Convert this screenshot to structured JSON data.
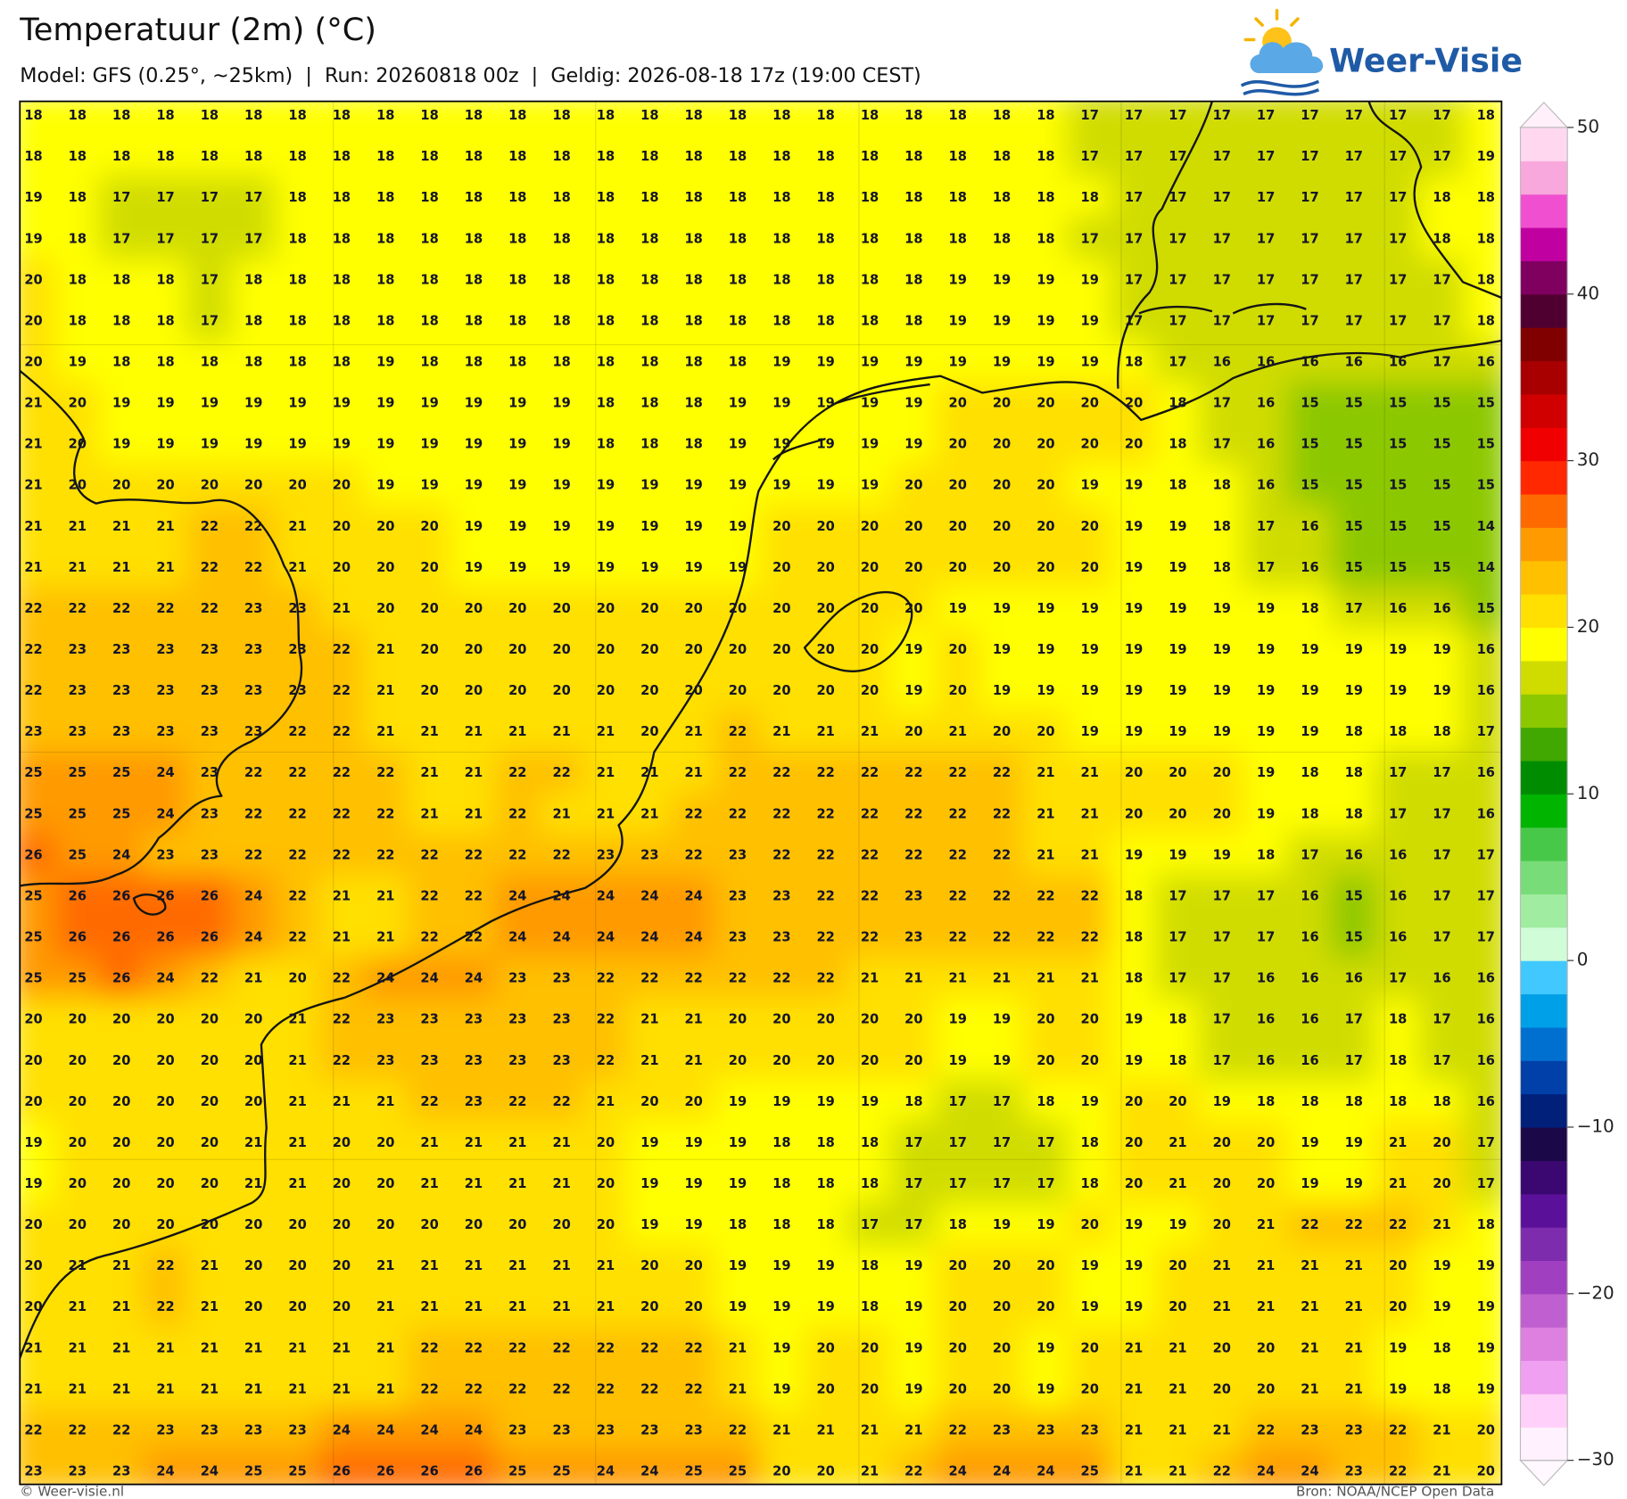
{
  "header": {
    "title": "Temperatuur (2m) (°C)",
    "subtitle": "Model: GFS (0.25°, ~25km)  |  Run: 20260818 00z  |  Geldig: 2026-08-18 17z (19:00 CEST)"
  },
  "logo": {
    "text": "Weer-Visie"
  },
  "map": {
    "values": [
      [
        18,
        18,
        18,
        18,
        18,
        18,
        18,
        18,
        18,
        18,
        18,
        18,
        18,
        18,
        18,
        18,
        18,
        18,
        18,
        18,
        18,
        18,
        18,
        18,
        17,
        17,
        17,
        17,
        17,
        17,
        17,
        17,
        17,
        18
      ],
      [
        18,
        18,
        18,
        18,
        18,
        18,
        18,
        18,
        18,
        18,
        18,
        18,
        18,
        18,
        18,
        18,
        18,
        18,
        18,
        18,
        18,
        18,
        18,
        18,
        17,
        17,
        17,
        17,
        17,
        17,
        17,
        17,
        17,
        19
      ],
      [
        19,
        18,
        17,
        17,
        17,
        17,
        18,
        18,
        18,
        18,
        18,
        18,
        18,
        18,
        18,
        18,
        18,
        18,
        18,
        18,
        18,
        18,
        18,
        18,
        18,
        17,
        17,
        17,
        17,
        17,
        17,
        17,
        18,
        18
      ],
      [
        19,
        18,
        17,
        17,
        17,
        17,
        18,
        18,
        18,
        18,
        18,
        18,
        18,
        18,
        18,
        18,
        18,
        18,
        18,
        18,
        18,
        18,
        18,
        18,
        17,
        17,
        17,
        17,
        17,
        17,
        17,
        17,
        18,
        18
      ],
      [
        20,
        18,
        18,
        18,
        17,
        18,
        18,
        18,
        18,
        18,
        18,
        18,
        18,
        18,
        18,
        18,
        18,
        18,
        18,
        18,
        18,
        19,
        19,
        19,
        19,
        17,
        17,
        17,
        17,
        17,
        17,
        17,
        17,
        18
      ],
      [
        20,
        18,
        18,
        18,
        17,
        18,
        18,
        18,
        18,
        18,
        18,
        18,
        18,
        18,
        18,
        18,
        18,
        18,
        18,
        18,
        18,
        19,
        19,
        19,
        19,
        17,
        17,
        17,
        17,
        17,
        17,
        17,
        17,
        18
      ],
      [
        20,
        19,
        18,
        18,
        18,
        18,
        18,
        18,
        19,
        18,
        18,
        18,
        18,
        18,
        18,
        18,
        18,
        19,
        19,
        19,
        19,
        19,
        19,
        19,
        19,
        18,
        17,
        16,
        16,
        16,
        16,
        16,
        17,
        16
      ],
      [
        21,
        20,
        19,
        19,
        19,
        19,
        19,
        19,
        19,
        19,
        19,
        19,
        19,
        18,
        18,
        18,
        19,
        19,
        19,
        19,
        19,
        20,
        20,
        20,
        20,
        20,
        18,
        17,
        16,
        15,
        15,
        15,
        15,
        15
      ],
      [
        21,
        20,
        19,
        19,
        19,
        19,
        19,
        19,
        19,
        19,
        19,
        19,
        19,
        18,
        18,
        18,
        19,
        19,
        19,
        19,
        19,
        20,
        20,
        20,
        20,
        20,
        18,
        17,
        16,
        15,
        15,
        15,
        15,
        15
      ],
      [
        21,
        20,
        20,
        20,
        20,
        20,
        20,
        20,
        19,
        19,
        19,
        19,
        19,
        19,
        19,
        19,
        19,
        19,
        19,
        19,
        20,
        20,
        20,
        20,
        19,
        19,
        18,
        18,
        16,
        15,
        15,
        15,
        15,
        15
      ],
      [
        21,
        21,
        21,
        21,
        22,
        22,
        21,
        20,
        20,
        20,
        19,
        19,
        19,
        19,
        19,
        19,
        19,
        20,
        20,
        20,
        20,
        20,
        20,
        20,
        20,
        19,
        19,
        18,
        17,
        16,
        15,
        15,
        15,
        14
      ],
      [
        21,
        21,
        21,
        21,
        22,
        22,
        21,
        20,
        20,
        20,
        19,
        19,
        19,
        19,
        19,
        19,
        19,
        20,
        20,
        20,
        20,
        20,
        20,
        20,
        20,
        19,
        19,
        18,
        17,
        16,
        15,
        15,
        15,
        14
      ],
      [
        22,
        22,
        22,
        22,
        22,
        23,
        23,
        21,
        20,
        20,
        20,
        20,
        20,
        20,
        20,
        20,
        20,
        20,
        20,
        20,
        20,
        19,
        19,
        19,
        19,
        19,
        19,
        19,
        19,
        18,
        17,
        16,
        16,
        15
      ],
      [
        22,
        23,
        23,
        23,
        23,
        23,
        23,
        22,
        21,
        20,
        20,
        20,
        20,
        20,
        20,
        20,
        20,
        20,
        20,
        20,
        19,
        20,
        19,
        19,
        19,
        19,
        19,
        19,
        19,
        19,
        19,
        19,
        19,
        16
      ],
      [
        22,
        23,
        23,
        23,
        23,
        23,
        23,
        22,
        21,
        20,
        20,
        20,
        20,
        20,
        20,
        20,
        20,
        20,
        20,
        20,
        19,
        20,
        19,
        19,
        19,
        19,
        19,
        19,
        19,
        19,
        19,
        19,
        19,
        16
      ],
      [
        23,
        23,
        23,
        23,
        23,
        23,
        22,
        22,
        21,
        21,
        21,
        21,
        21,
        21,
        20,
        21,
        22,
        21,
        21,
        21,
        20,
        21,
        20,
        20,
        19,
        19,
        19,
        19,
        19,
        19,
        18,
        18,
        18,
        17
      ],
      [
        25,
        25,
        25,
        24,
        23,
        22,
        22,
        22,
        22,
        21,
        21,
        22,
        22,
        21,
        21,
        21,
        22,
        22,
        22,
        22,
        22,
        22,
        22,
        21,
        21,
        20,
        20,
        20,
        19,
        18,
        18,
        17,
        17,
        16
      ],
      [
        25,
        25,
        25,
        24,
        23,
        22,
        22,
        22,
        22,
        21,
        21,
        22,
        21,
        21,
        21,
        22,
        22,
        22,
        22,
        22,
        22,
        22,
        22,
        21,
        21,
        20,
        20,
        20,
        19,
        18,
        18,
        17,
        17,
        16
      ],
      [
        26,
        25,
        24,
        23,
        23,
        22,
        22,
        22,
        22,
        22,
        22,
        22,
        22,
        23,
        23,
        22,
        23,
        22,
        22,
        22,
        22,
        22,
        22,
        21,
        21,
        19,
        19,
        19,
        18,
        17,
        16,
        16,
        17,
        17
      ],
      [
        25,
        26,
        26,
        26,
        26,
        24,
        22,
        21,
        21,
        22,
        22,
        24,
        24,
        24,
        24,
        24,
        23,
        23,
        22,
        22,
        23,
        22,
        22,
        22,
        22,
        18,
        17,
        17,
        17,
        16,
        15,
        16,
        17,
        17
      ],
      [
        25,
        26,
        26,
        26,
        26,
        24,
        22,
        21,
        21,
        22,
        22,
        24,
        24,
        24,
        24,
        24,
        23,
        23,
        22,
        22,
        23,
        22,
        22,
        22,
        22,
        18,
        17,
        17,
        17,
        16,
        15,
        16,
        17,
        17
      ],
      [
        25,
        25,
        26,
        24,
        22,
        21,
        20,
        22,
        24,
        24,
        24,
        23,
        23,
        22,
        22,
        22,
        22,
        22,
        22,
        21,
        21,
        21,
        21,
        21,
        21,
        18,
        17,
        17,
        16,
        16,
        16,
        17,
        16,
        16
      ],
      [
        20,
        20,
        20,
        20,
        20,
        20,
        21,
        22,
        23,
        23,
        23,
        23,
        23,
        22,
        21,
        21,
        20,
        20,
        20,
        20,
        20,
        19,
        19,
        20,
        20,
        19,
        18,
        17,
        16,
        16,
        17,
        18,
        17,
        16
      ],
      [
        20,
        20,
        20,
        20,
        20,
        20,
        21,
        22,
        23,
        23,
        23,
        23,
        23,
        22,
        21,
        21,
        20,
        20,
        20,
        20,
        20,
        19,
        19,
        20,
        20,
        19,
        18,
        17,
        16,
        16,
        17,
        18,
        17,
        16
      ],
      [
        20,
        20,
        20,
        20,
        20,
        20,
        21,
        21,
        21,
        22,
        23,
        22,
        22,
        21,
        20,
        20,
        19,
        19,
        19,
        19,
        18,
        17,
        17,
        18,
        19,
        20,
        20,
        19,
        18,
        18,
        18,
        18,
        18,
        16
      ],
      [
        19,
        20,
        20,
        20,
        20,
        21,
        21,
        20,
        20,
        21,
        21,
        21,
        21,
        20,
        19,
        19,
        19,
        18,
        18,
        18,
        17,
        17,
        17,
        17,
        18,
        20,
        21,
        20,
        20,
        19,
        19,
        21,
        20,
        17
      ],
      [
        19,
        20,
        20,
        20,
        20,
        21,
        21,
        20,
        20,
        21,
        21,
        21,
        21,
        20,
        19,
        19,
        19,
        18,
        18,
        18,
        17,
        17,
        17,
        17,
        18,
        20,
        21,
        20,
        20,
        19,
        19,
        21,
        20,
        17
      ],
      [
        20,
        20,
        20,
        20,
        20,
        20,
        20,
        20,
        20,
        20,
        20,
        20,
        20,
        20,
        19,
        19,
        18,
        18,
        18,
        17,
        17,
        18,
        19,
        19,
        20,
        19,
        19,
        20,
        21,
        22,
        22,
        22,
        21,
        18
      ],
      [
        20,
        21,
        21,
        22,
        21,
        20,
        20,
        20,
        21,
        21,
        21,
        21,
        21,
        21,
        20,
        20,
        19,
        19,
        19,
        18,
        19,
        20,
        20,
        20,
        19,
        19,
        20,
        21,
        21,
        21,
        21,
        20,
        19,
        19
      ],
      [
        20,
        21,
        21,
        22,
        21,
        20,
        20,
        20,
        21,
        21,
        21,
        21,
        21,
        21,
        20,
        20,
        19,
        19,
        19,
        18,
        19,
        20,
        20,
        20,
        19,
        19,
        20,
        21,
        21,
        21,
        21,
        20,
        19,
        19
      ],
      [
        21,
        21,
        21,
        21,
        21,
        21,
        21,
        21,
        21,
        22,
        22,
        22,
        22,
        22,
        22,
        22,
        21,
        19,
        20,
        20,
        19,
        20,
        20,
        19,
        20,
        21,
        21,
        20,
        20,
        21,
        21,
        19,
        18,
        19
      ],
      [
        21,
        21,
        21,
        21,
        21,
        21,
        21,
        21,
        21,
        22,
        22,
        22,
        22,
        22,
        22,
        22,
        21,
        19,
        20,
        20,
        19,
        20,
        20,
        19,
        20,
        21,
        21,
        20,
        20,
        21,
        21,
        19,
        18,
        19
      ],
      [
        22,
        22,
        22,
        23,
        23,
        23,
        23,
        24,
        24,
        24,
        24,
        23,
        23,
        23,
        23,
        23,
        22,
        21,
        21,
        21,
        21,
        22,
        23,
        23,
        23,
        21,
        21,
        21,
        22,
        23,
        23,
        22,
        21,
        20
      ],
      [
        23,
        23,
        23,
        24,
        24,
        25,
        25,
        26,
        26,
        26,
        26,
        25,
        25,
        24,
        24,
        25,
        25,
        20,
        20,
        21,
        22,
        24,
        24,
        24,
        25,
        21,
        21,
        22,
        24,
        24,
        23,
        22,
        21,
        20
      ]
    ]
  },
  "colorbar": {
    "lim": [
      -30,
      50
    ],
    "ticks": [
      {
        "value": -30,
        "label": "−30"
      },
      {
        "value": -20,
        "label": "−20"
      },
      {
        "value": -10,
        "label": "−10"
      },
      0,
      10,
      20,
      30,
      40,
      50
    ],
    "colors": [
      "#fff2fe",
      "#ffd0fa",
      "#f0a0f0",
      "#dd80e0",
      "#c060d0",
      "#a040c0",
      "#7c2cac",
      "#5a1098",
      "#3a0870",
      "#1a0848",
      "#00207a",
      "#0040a8",
      "#0070d0",
      "#00a0e8",
      "#40c8ff",
      "#d0fcd8",
      "#a0eca0",
      "#78dc78",
      "#48c848",
      "#00b400",
      "#008c00",
      "#40a800",
      "#8cc800",
      "#d0dc00",
      "#ffff00",
      "#ffe000",
      "#ffc000",
      "#ff9a00",
      "#ff6a00",
      "#ff2800",
      "#f00000",
      "#d00000",
      "#a80000",
      "#800000",
      "#500030",
      "#800060",
      "#c000a0",
      "#f050d0",
      "#f8a8dc",
      "#ffd8f0"
    ],
    "under_color": "#fff8ff",
    "over_color": "#fff0fa"
  },
  "footer": {
    "left": "© Weer-visie.nl",
    "right": "Bron: NOAA/NCEP Open Data"
  }
}
